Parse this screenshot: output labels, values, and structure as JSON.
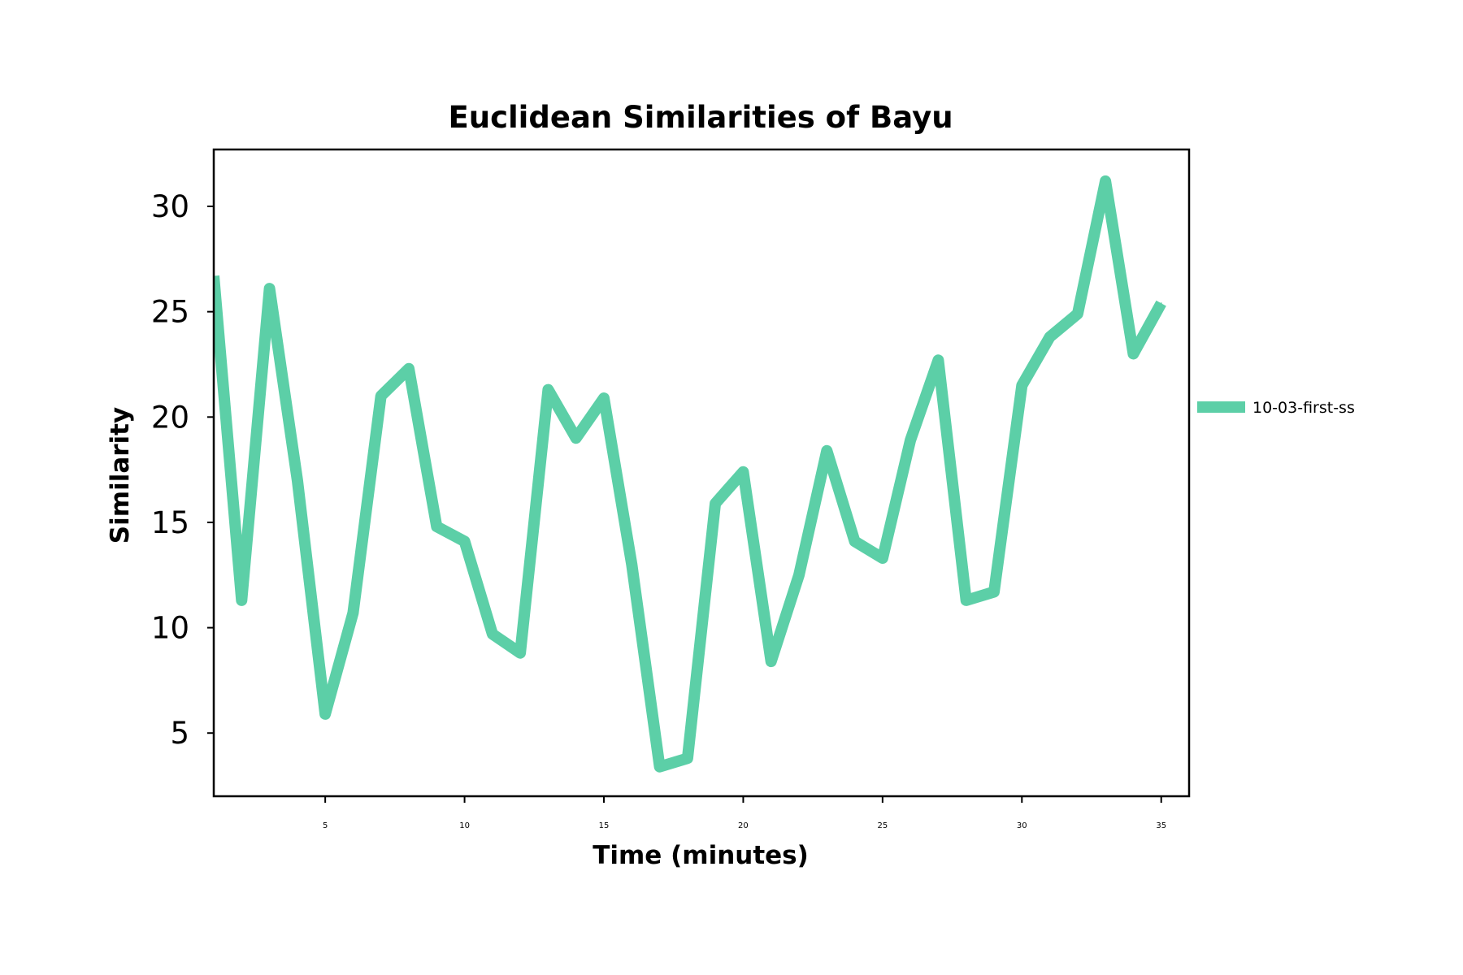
{
  "chart_data": {
    "type": "line",
    "title": "Euclidean Similarities of Bayu",
    "xlabel": "Time (minutes)",
    "ylabel": "Similarity",
    "xlim": [
      1,
      36
    ],
    "ylim": [
      2,
      32.7
    ],
    "xticks": [
      5,
      10,
      15,
      20,
      25,
      30,
      35
    ],
    "xtick_labels": [
      "5",
      "10",
      "15",
      "20",
      "25",
      "30",
      "35"
    ],
    "yticks": [
      5,
      10,
      15,
      20,
      25,
      30
    ],
    "ytick_labels": [
      "5",
      "10",
      "15",
      "20",
      "25",
      "30"
    ],
    "grid": false,
    "legend_position": "outside-right",
    "series": [
      {
        "name": "10-03-first-ss",
        "color": "#5ccfa7",
        "x": [
          1,
          2,
          3,
          4,
          5,
          6,
          7,
          8,
          9,
          10,
          11,
          12,
          13,
          14,
          15,
          16,
          17,
          18,
          19,
          20,
          21,
          22,
          23,
          24,
          25,
          26,
          27,
          28,
          29,
          30,
          31,
          32,
          33,
          34,
          35
        ],
        "y": [
          26.7,
          11.3,
          26.1,
          17.0,
          5.9,
          10.7,
          21.0,
          22.3,
          14.8,
          14.1,
          9.7,
          8.8,
          21.3,
          19.0,
          20.9,
          13.0,
          3.4,
          3.8,
          15.9,
          17.4,
          8.4,
          12.5,
          18.4,
          14.1,
          13.3,
          18.9,
          22.7,
          11.3,
          11.7,
          21.5,
          23.8,
          24.9,
          31.2,
          23.0,
          25.4
        ]
      }
    ]
  }
}
